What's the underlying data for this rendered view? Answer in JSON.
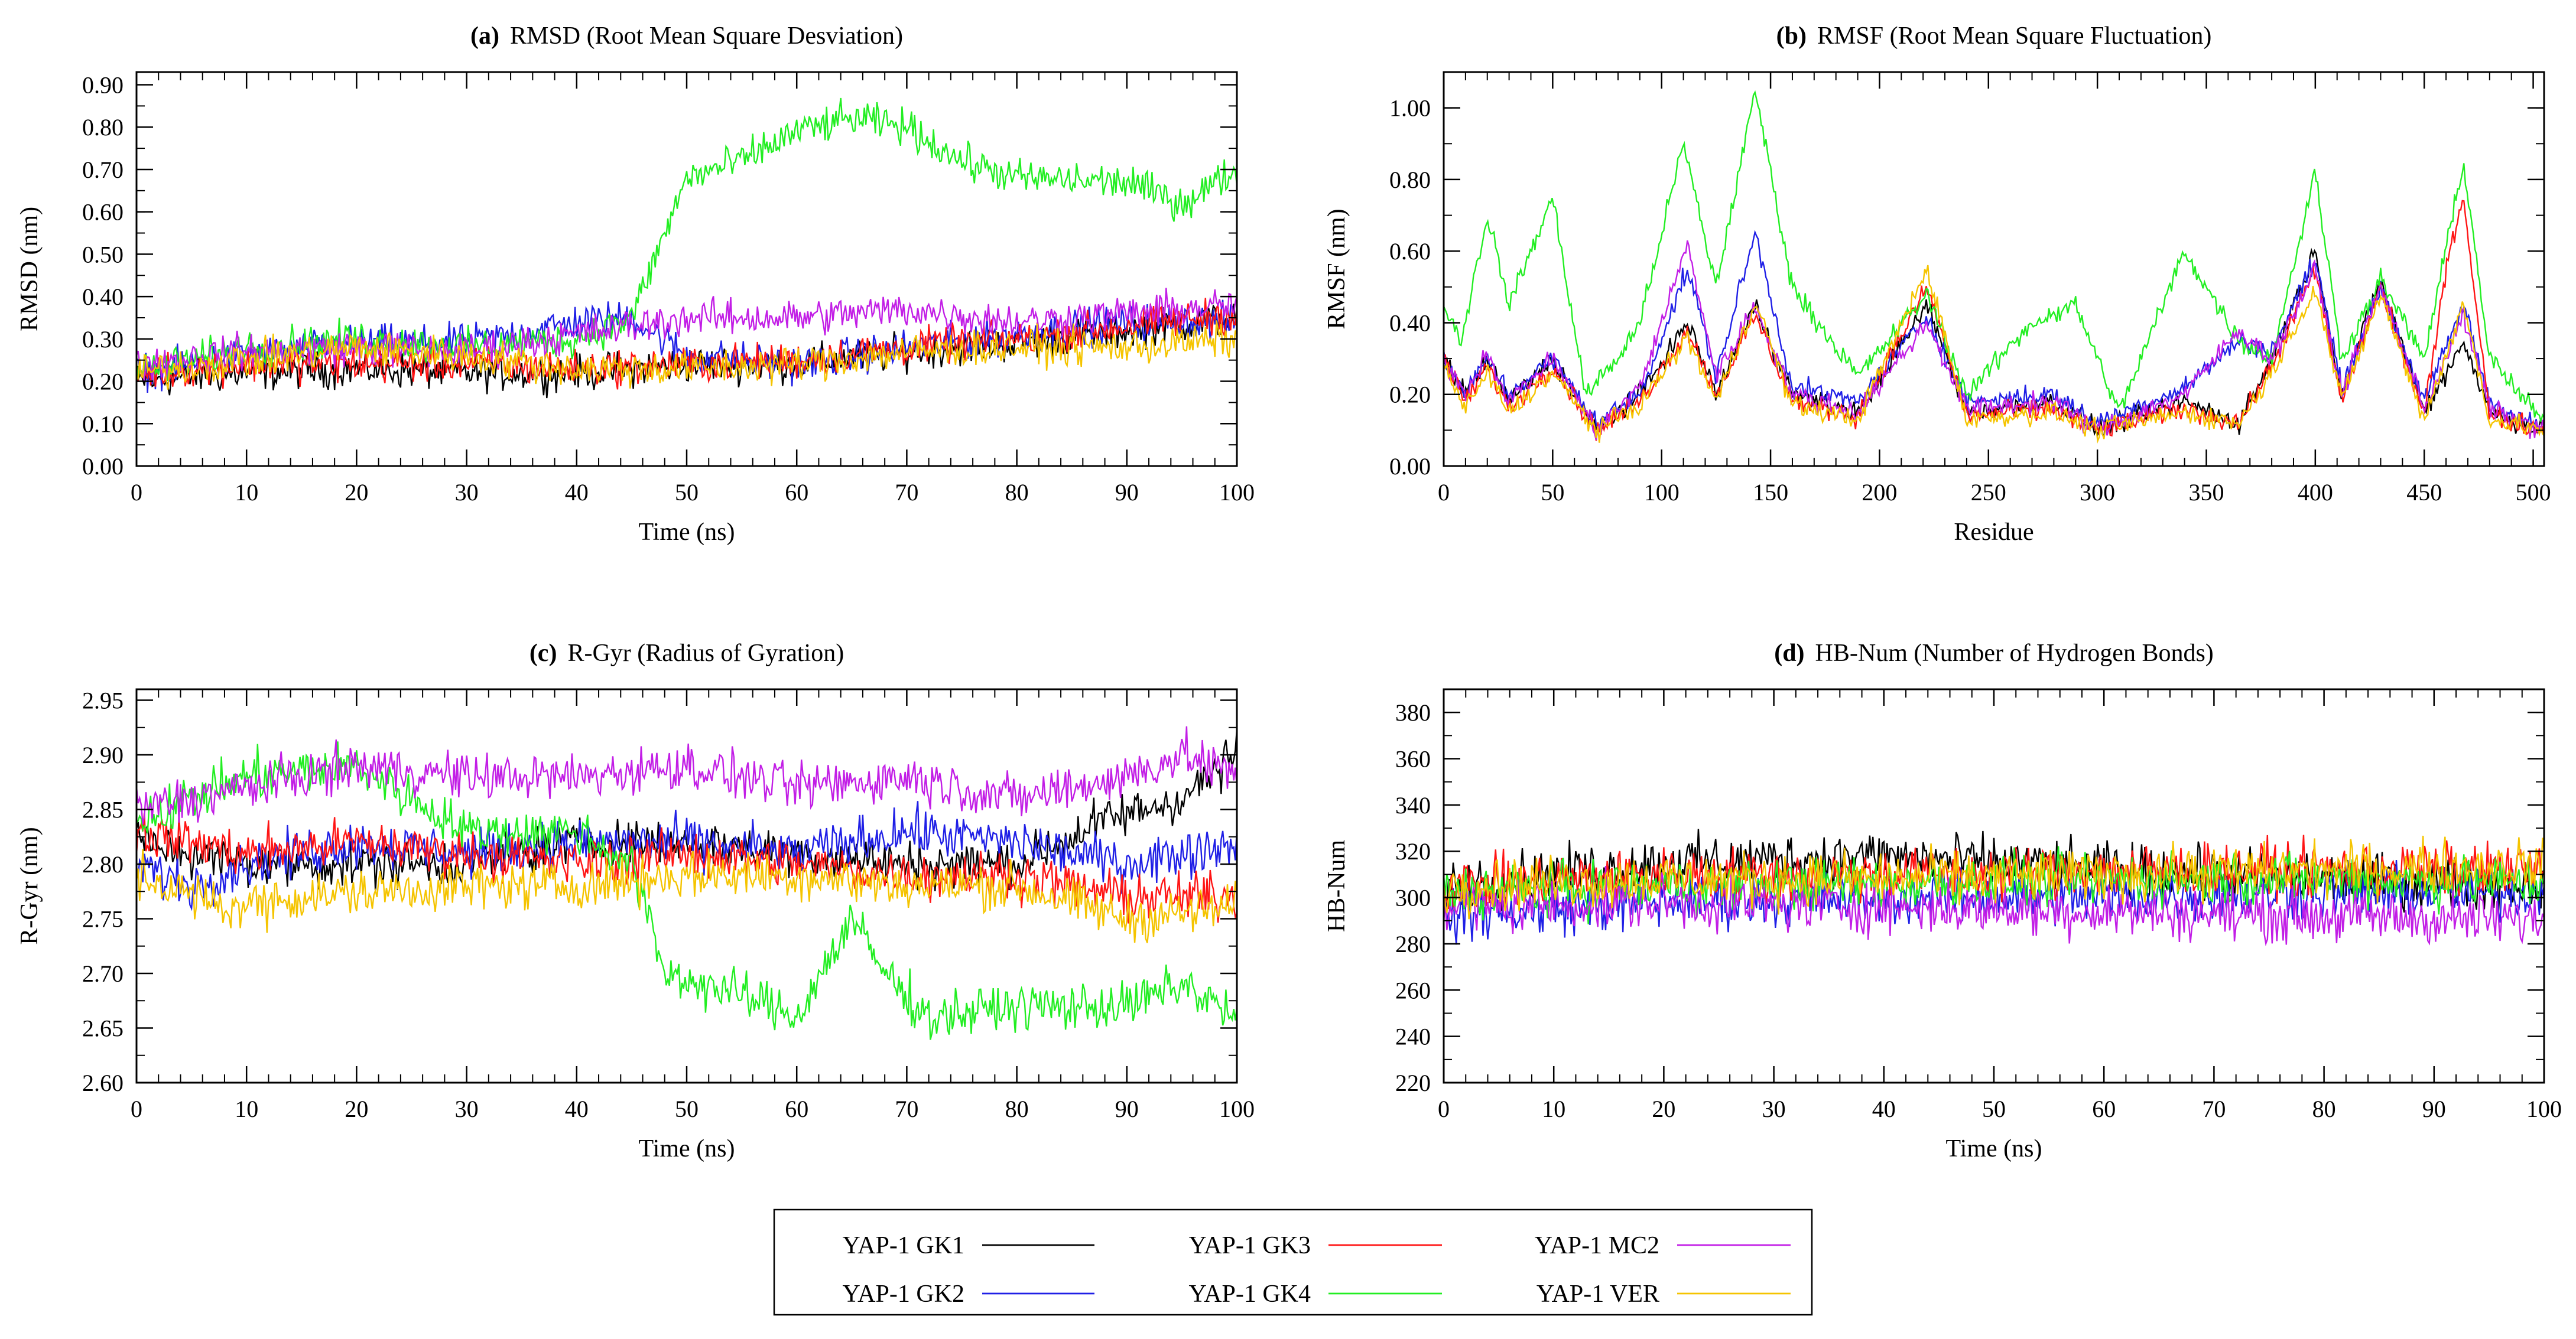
{
  "legend": [
    {
      "name": "YAP-1 GK1",
      "color": "#000000"
    },
    {
      "name": "YAP-1 GK2",
      "color": "#1f1fe6"
    },
    {
      "name": "YAP-1 GK3",
      "color": "#ff1414"
    },
    {
      "name": "YAP-1 GK4",
      "color": "#22ee22"
    },
    {
      "name": "YAP-1 MC2",
      "color": "#c21ee6"
    },
    {
      "name": "YAP-1 VER",
      "color": "#f5c400"
    }
  ],
  "chart_data": [
    {
      "type": "line",
      "tag": "(a)",
      "title": "RMSD (Root Mean Square Desviation)",
      "xlabel": "Time (ns)",
      "ylabel": "RMSD (nm)",
      "xlim": [
        0,
        100
      ],
      "ylim": [
        0.0,
        0.93
      ],
      "xticks": [
        0,
        10,
        20,
        30,
        40,
        50,
        60,
        70,
        80,
        90,
        100
      ],
      "xtick_labels": [
        "0",
        "10",
        "20",
        "30",
        "40",
        "50",
        "60",
        "70",
        "80",
        "90",
        "100"
      ],
      "yticks": [
        0,
        0.1,
        0.2,
        0.3,
        0.4,
        0.5,
        0.6,
        0.7,
        0.8,
        0.9
      ],
      "ytick_labels": [
        "0.00",
        "0.10",
        "0.20",
        "0.30",
        "0.40",
        "0.50",
        "0.60",
        "0.70",
        "0.80",
        "0.90"
      ],
      "noise": 0.03,
      "series": [
        {
          "name": "YAP-1 GK1",
          "x": [
            0,
            10,
            20,
            30,
            40,
            50,
            60,
            70,
            80,
            90,
            100
          ],
          "y": [
            0.2,
            0.22,
            0.23,
            0.22,
            0.22,
            0.24,
            0.24,
            0.27,
            0.29,
            0.32,
            0.35
          ]
        },
        {
          "name": "YAP-1 GK2",
          "x": [
            0,
            10,
            20,
            30,
            40,
            45,
            50,
            60,
            70,
            80,
            90,
            100
          ],
          "y": [
            0.22,
            0.26,
            0.29,
            0.29,
            0.34,
            0.35,
            0.26,
            0.24,
            0.28,
            0.31,
            0.34,
            0.34
          ]
        },
        {
          "name": "YAP-1 GK3",
          "x": [
            0,
            10,
            20,
            30,
            40,
            50,
            60,
            70,
            80,
            90,
            100
          ],
          "y": [
            0.22,
            0.24,
            0.24,
            0.24,
            0.23,
            0.24,
            0.25,
            0.28,
            0.3,
            0.33,
            0.36
          ]
        },
        {
          "name": "YAP-1 GK4",
          "x": [
            0,
            10,
            20,
            30,
            40,
            45,
            50,
            55,
            60,
            65,
            70,
            75,
            80,
            90,
            95,
            100
          ],
          "y": [
            0.22,
            0.28,
            0.3,
            0.28,
            0.3,
            0.35,
            0.68,
            0.72,
            0.79,
            0.82,
            0.8,
            0.72,
            0.68,
            0.67,
            0.62,
            0.7
          ]
        },
        {
          "name": "YAP-1 MC2",
          "x": [
            0,
            10,
            20,
            30,
            40,
            50,
            60,
            70,
            80,
            90,
            100
          ],
          "y": [
            0.24,
            0.27,
            0.28,
            0.27,
            0.31,
            0.35,
            0.35,
            0.37,
            0.34,
            0.36,
            0.38
          ]
        },
        {
          "name": "YAP-1 VER",
          "x": [
            0,
            10,
            20,
            30,
            40,
            50,
            60,
            70,
            80,
            90,
            100
          ],
          "y": [
            0.22,
            0.25,
            0.28,
            0.26,
            0.23,
            0.23,
            0.24,
            0.27,
            0.28,
            0.28,
            0.3
          ]
        }
      ]
    },
    {
      "type": "line",
      "tag": "(b)",
      "title": "RMSF (Root Mean Square Fluctuation)",
      "xlabel": "Residue",
      "ylabel": "RMSF (nm)",
      "xlim": [
        0,
        505
      ],
      "ylim": [
        0.0,
        1.1
      ],
      "xticks": [
        0,
        50,
        100,
        150,
        200,
        250,
        300,
        350,
        400,
        450,
        500
      ],
      "xtick_labels": [
        "0",
        "50",
        "100",
        "150",
        "200",
        "250",
        "300",
        "350",
        "400",
        "450",
        "500"
      ],
      "yticks": [
        0,
        0.2,
        0.4,
        0.6,
        0.8,
        1.0
      ],
      "ytick_labels": [
        "0.00",
        "0.20",
        "0.40",
        "0.60",
        "0.80",
        "1.00"
      ],
      "noise": 0.02,
      "series": [
        {
          "name": "YAP-1 GK1",
          "x": [
            0,
            10,
            20,
            30,
            50,
            70,
            90,
            112,
            125,
            143,
            160,
            190,
            222,
            240,
            280,
            300,
            340,
            365,
            380,
            400,
            412,
            430,
            450,
            468,
            480,
            505
          ],
          "y": [
            0.3,
            0.2,
            0.3,
            0.18,
            0.3,
            0.1,
            0.2,
            0.4,
            0.2,
            0.45,
            0.2,
            0.15,
            0.45,
            0.15,
            0.18,
            0.1,
            0.18,
            0.12,
            0.3,
            0.6,
            0.2,
            0.52,
            0.15,
            0.35,
            0.15,
            0.1
          ]
        },
        {
          "name": "YAP-1 GK2",
          "x": [
            0,
            10,
            20,
            30,
            50,
            70,
            90,
            112,
            125,
            143,
            160,
            190,
            222,
            240,
            280,
            300,
            340,
            365,
            380,
            400,
            412,
            430,
            450,
            468,
            480,
            505
          ],
          "y": [
            0.3,
            0.2,
            0.3,
            0.2,
            0.3,
            0.12,
            0.2,
            0.55,
            0.25,
            0.65,
            0.22,
            0.18,
            0.42,
            0.18,
            0.2,
            0.12,
            0.22,
            0.35,
            0.32,
            0.58,
            0.22,
            0.5,
            0.18,
            0.45,
            0.18,
            0.1
          ]
        },
        {
          "name": "YAP-1 GK3",
          "x": [
            0,
            10,
            20,
            30,
            50,
            70,
            90,
            112,
            125,
            143,
            160,
            190,
            222,
            240,
            280,
            300,
            340,
            365,
            380,
            400,
            412,
            430,
            450,
            462,
            468,
            480,
            505
          ],
          "y": [
            0.3,
            0.18,
            0.28,
            0.16,
            0.28,
            0.1,
            0.18,
            0.38,
            0.2,
            0.42,
            0.18,
            0.14,
            0.5,
            0.14,
            0.16,
            0.1,
            0.16,
            0.12,
            0.28,
            0.55,
            0.18,
            0.5,
            0.14,
            0.62,
            0.75,
            0.14,
            0.1
          ]
        },
        {
          "name": "YAP-1 GK4",
          "x": [
            0,
            8,
            20,
            30,
            50,
            65,
            80,
            90,
            110,
            125,
            143,
            160,
            190,
            222,
            240,
            270,
            290,
            310,
            340,
            365,
            380,
            400,
            412,
            430,
            450,
            468,
            480,
            505
          ],
          "y": [
            0.45,
            0.35,
            0.7,
            0.45,
            0.75,
            0.2,
            0.3,
            0.4,
            0.9,
            0.5,
            1.05,
            0.5,
            0.25,
            0.48,
            0.2,
            0.4,
            0.45,
            0.15,
            0.6,
            0.35,
            0.3,
            0.82,
            0.3,
            0.52,
            0.3,
            0.85,
            0.3,
            0.12
          ]
        },
        {
          "name": "YAP-1 MC2",
          "x": [
            0,
            10,
            20,
            30,
            50,
            70,
            90,
            112,
            125,
            143,
            160,
            190,
            222,
            240,
            280,
            300,
            340,
            365,
            380,
            400,
            412,
            430,
            450,
            468,
            480,
            505
          ],
          "y": [
            0.3,
            0.2,
            0.32,
            0.18,
            0.3,
            0.1,
            0.22,
            0.62,
            0.25,
            0.45,
            0.2,
            0.15,
            0.4,
            0.16,
            0.18,
            0.1,
            0.2,
            0.38,
            0.3,
            0.55,
            0.2,
            0.5,
            0.16,
            0.42,
            0.16,
            0.1
          ]
        },
        {
          "name": "YAP-1 VER",
          "x": [
            0,
            10,
            20,
            30,
            50,
            70,
            90,
            112,
            125,
            143,
            160,
            190,
            222,
            240,
            280,
            300,
            340,
            365,
            380,
            400,
            412,
            430,
            450,
            468,
            480,
            505
          ],
          "y": [
            0.28,
            0.16,
            0.26,
            0.15,
            0.26,
            0.1,
            0.17,
            0.36,
            0.18,
            0.46,
            0.17,
            0.13,
            0.55,
            0.13,
            0.15,
            0.1,
            0.15,
            0.12,
            0.26,
            0.5,
            0.18,
            0.48,
            0.13,
            0.45,
            0.13,
            0.1
          ]
        }
      ]
    },
    {
      "type": "line",
      "tag": "(c)",
      "title": "R-Gyr (Radius of Gyration)",
      "xlabel": "Time (ns)",
      "ylabel": "R-Gyr (nm)",
      "xlim": [
        0,
        100
      ],
      "ylim": [
        2.6,
        2.96
      ],
      "xticks": [
        0,
        10,
        20,
        30,
        40,
        50,
        60,
        70,
        80,
        90,
        100
      ],
      "xtick_labels": [
        "0",
        "10",
        "20",
        "30",
        "40",
        "50",
        "60",
        "70",
        "80",
        "90",
        "100"
      ],
      "yticks": [
        2.6,
        2.65,
        2.7,
        2.75,
        2.8,
        2.85,
        2.9,
        2.95
      ],
      "ytick_labels": [
        "2.60",
        "2.65",
        "2.70",
        "2.75",
        "2.80",
        "2.85",
        "2.90",
        "2.95"
      ],
      "noise": 0.015,
      "series": [
        {
          "name": "YAP-1 GK1",
          "x": [
            0,
            10,
            20,
            30,
            40,
            50,
            60,
            70,
            80,
            88,
            95,
            100
          ],
          "y": [
            2.82,
            2.8,
            2.8,
            2.8,
            2.82,
            2.82,
            2.81,
            2.8,
            2.8,
            2.84,
            2.86,
            2.9
          ]
        },
        {
          "name": "YAP-1 GK2",
          "x": [
            0,
            5,
            10,
            20,
            30,
            40,
            50,
            60,
            70,
            80,
            90,
            100
          ],
          "y": [
            2.8,
            2.78,
            2.8,
            2.82,
            2.81,
            2.82,
            2.82,
            2.81,
            2.83,
            2.82,
            2.8,
            2.82
          ]
        },
        {
          "name": "YAP-1 GK3",
          "x": [
            0,
            10,
            20,
            30,
            40,
            50,
            60,
            70,
            80,
            90,
            100
          ],
          "y": [
            2.83,
            2.81,
            2.82,
            2.81,
            2.8,
            2.81,
            2.8,
            2.79,
            2.79,
            2.77,
            2.77
          ]
        },
        {
          "name": "YAP-1 GK4",
          "x": [
            0,
            10,
            20,
            30,
            40,
            45,
            48,
            55,
            60,
            65,
            68,
            72,
            80,
            90,
            95,
            100
          ],
          "y": [
            2.84,
            2.88,
            2.89,
            2.83,
            2.83,
            2.8,
            2.7,
            2.68,
            2.66,
            2.75,
            2.7,
            2.66,
            2.67,
            2.67,
            2.69,
            2.66
          ]
        },
        {
          "name": "YAP-1 MC2",
          "x": [
            0,
            10,
            20,
            30,
            40,
            50,
            60,
            70,
            80,
            90,
            95,
            100
          ],
          "y": [
            2.85,
            2.87,
            2.89,
            2.88,
            2.88,
            2.89,
            2.87,
            2.88,
            2.86,
            2.88,
            2.9,
            2.88
          ]
        },
        {
          "name": "YAP-1 VER",
          "x": [
            0,
            8,
            15,
            30,
            40,
            50,
            60,
            70,
            80,
            90,
            100
          ],
          "y": [
            2.79,
            2.76,
            2.77,
            2.78,
            2.78,
            2.79,
            2.79,
            2.78,
            2.78,
            2.75,
            2.76
          ]
        }
      ]
    },
    {
      "type": "line",
      "tag": "(d)",
      "title": "HB-Num (Number of Hydrogen Bonds)",
      "xlabel": "Time (ns)",
      "ylabel": "HB-Num",
      "xlim": [
        0,
        100
      ],
      "ylim": [
        220,
        390
      ],
      "xticks": [
        0,
        10,
        20,
        30,
        40,
        50,
        60,
        70,
        80,
        90,
        100
      ],
      "xtick_labels": [
        "0",
        "10",
        "20",
        "30",
        "40",
        "50",
        "60",
        "70",
        "80",
        "90",
        "100"
      ],
      "yticks": [
        220,
        240,
        260,
        280,
        300,
        320,
        340,
        360,
        380
      ],
      "ytick_labels": [
        "220",
        "240",
        "260",
        "280",
        "300",
        "320",
        "340",
        "360",
        "380"
      ],
      "noise": 8,
      "series": [
        {
          "name": "YAP-1 GK1",
          "x": [
            0,
            20,
            40,
            60,
            80,
            100
          ],
          "y": [
            305,
            315,
            318,
            312,
            308,
            305
          ]
        },
        {
          "name": "YAP-1 GK2",
          "x": [
            0,
            20,
            40,
            60,
            80,
            100
          ],
          "y": [
            292,
            298,
            300,
            300,
            302,
            302
          ]
        },
        {
          "name": "YAP-1 GK3",
          "x": [
            0,
            20,
            40,
            60,
            80,
            100
          ],
          "y": [
            305,
            310,
            310,
            312,
            312,
            312
          ]
        },
        {
          "name": "YAP-1 GK4",
          "x": [
            0,
            20,
            40,
            60,
            80,
            100
          ],
          "y": [
            302,
            305,
            306,
            308,
            308,
            306
          ]
        },
        {
          "name": "YAP-1 MC2",
          "x": [
            0,
            20,
            40,
            60,
            80,
            100
          ],
          "y": [
            296,
            298,
            296,
            294,
            292,
            290
          ]
        },
        {
          "name": "YAP-1 VER",
          "x": [
            0,
            20,
            40,
            60,
            80,
            100
          ],
          "y": [
            305,
            308,
            308,
            310,
            312,
            314
          ]
        }
      ]
    }
  ]
}
